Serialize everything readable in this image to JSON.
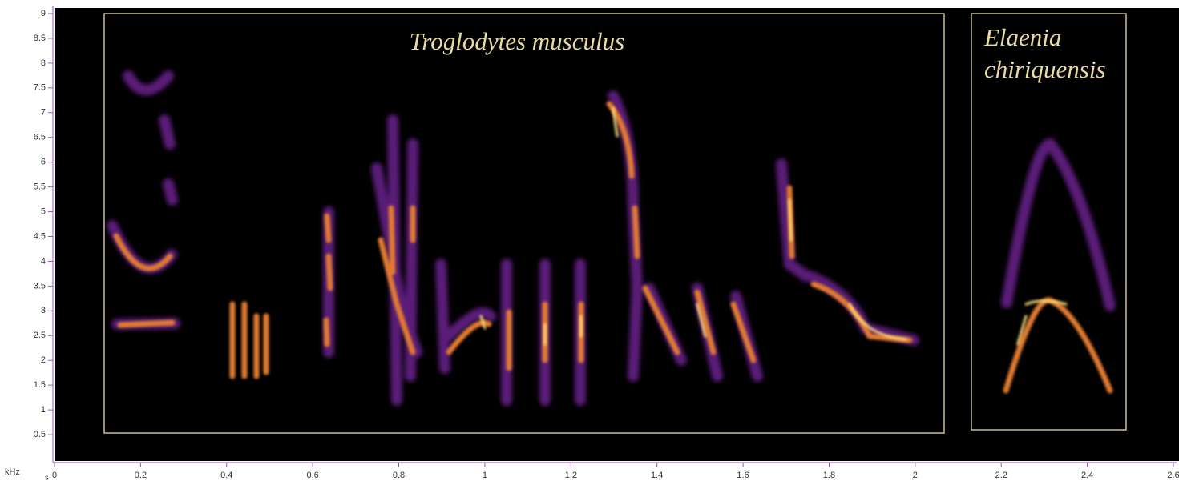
{
  "chart_data": {
    "type": "spectrogram",
    "x_label": "s",
    "y_label": "kHz",
    "xlim": [
      0,
      2.6
    ],
    "ylim": [
      0,
      9
    ],
    "xticks": [
      0,
      0.2,
      0.4,
      0.6,
      0.8,
      1,
      1.2,
      1.4,
      1.6,
      1.8,
      2,
      2.2,
      2.4,
      2.6
    ],
    "yticks": [
      0.5,
      1,
      1.5,
      2,
      2.5,
      3,
      3.5,
      4,
      4.5,
      5,
      5.5,
      6,
      6.5,
      7,
      7.5,
      8,
      8.5,
      9
    ],
    "annotations": [
      {
        "lines": [
          "Troglodytes musculus"
        ]
      },
      {
        "lines": [
          "Elaenia",
          "chiriquensis"
        ]
      }
    ]
  }
}
